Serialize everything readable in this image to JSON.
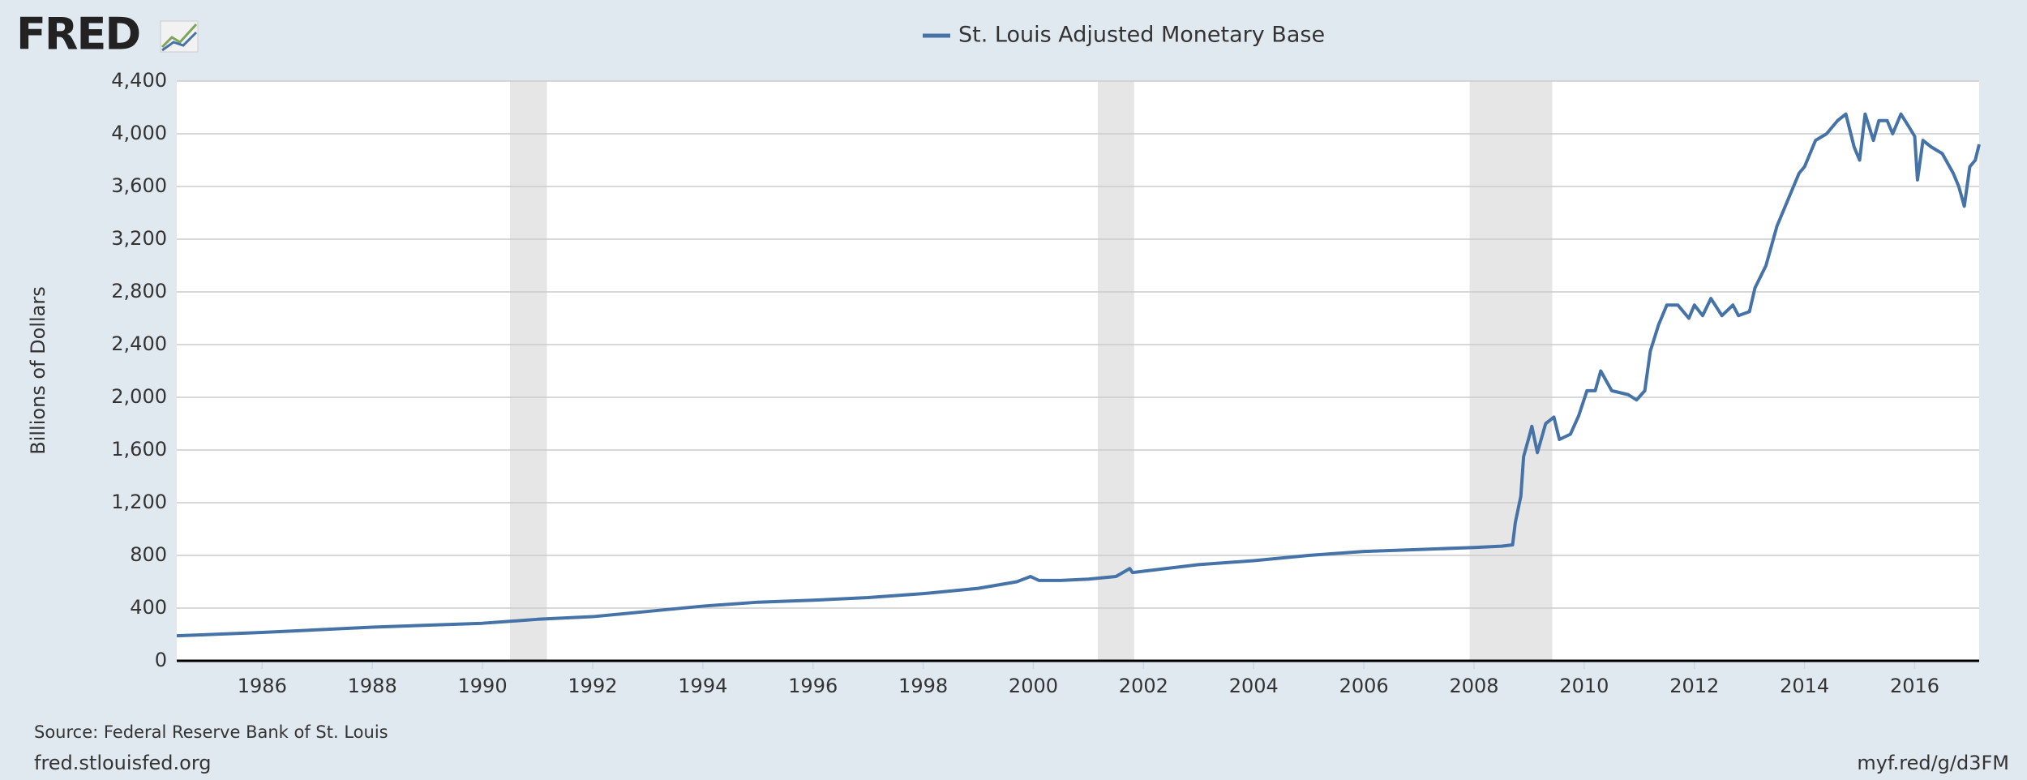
{
  "logo": "FRED",
  "chart_data": {
    "type": "line",
    "title": "St. Louis Adjusted Monetary Base",
    "y_label": "Billions of Dollars",
    "source": "Source: Federal Reserve Bank of St. Louis",
    "site": "fred.stlouisfed.org",
    "short_url": "myf.red/g/d3FM",
    "xlim": [
      1984.45,
      2017.17
    ],
    "xticks": [
      1986,
      1988,
      1990,
      1992,
      1994,
      1996,
      1998,
      2000,
      2002,
      2004,
      2006,
      2008,
      2010,
      2012,
      2014,
      2016
    ],
    "ylim": [
      0,
      4400
    ],
    "yticks": [
      0,
      400,
      800,
      {
        "value": 1200,
        "label": "1,200"
      },
      {
        "value": 1600,
        "label": "1,600"
      },
      {
        "value": 2000,
        "label": "2,000"
      },
      {
        "value": 2400,
        "label": "2,400"
      },
      {
        "value": 2800,
        "label": "2,800"
      },
      {
        "value": 3200,
        "label": "3,200"
      },
      {
        "value": 3600,
        "label": "3,600"
      },
      {
        "value": 4000,
        "label": "4,000"
      },
      {
        "value": 4400,
        "label": "4,400"
      }
    ],
    "grid": true,
    "recessions": [
      [
        1990.5,
        1991.17
      ],
      [
        2001.17,
        2001.83
      ],
      [
        2007.92,
        2009.42
      ]
    ],
    "recession_color": "#e6e6e6",
    "x": [
      1984.45,
      1986,
      1988,
      1990,
      1991,
      1992,
      1993,
      1994,
      1995,
      1996,
      1997,
      1998,
      1999,
      1999.7,
      1999.95,
      2000.1,
      2000.5,
      2001,
      2001.5,
      2001.75,
      2001.8,
      2002,
      2003,
      2004,
      2005,
      2006,
      2007,
      2008,
      2008.5,
      2008.7,
      2008.75,
      2008.85,
      2008.9,
      2009.0,
      2009.05,
      2009.15,
      2009.3,
      2009.45,
      2009.55,
      2009.75,
      2009.9,
      2010.05,
      2010.2,
      2010.3,
      2010.5,
      2010.8,
      2010.95,
      2011.1,
      2011.2,
      2011.35,
      2011.5,
      2011.7,
      2011.9,
      2012.0,
      2012.15,
      2012.3,
      2012.5,
      2012.7,
      2012.8,
      2013.0,
      2013.1,
      2013.3,
      2013.5,
      2013.7,
      2013.9,
      2014.0,
      2014.2,
      2014.4,
      2014.6,
      2014.75,
      2014.9,
      2015.0,
      2015.1,
      2015.25,
      2015.35,
      2015.5,
      2015.6,
      2015.75,
      2015.9,
      2016.0,
      2016.05,
      2016.15,
      2016.3,
      2016.5,
      2016.7,
      2016.8,
      2016.9,
      2017.0,
      2017.1,
      2017.17
    ],
    "series": [
      {
        "name": "St. Louis Adjusted Monetary Base",
        "color": "#4572a7",
        "values": [
          190,
          215,
          255,
          285,
          315,
          335,
          375,
          415,
          445,
          460,
          480,
          510,
          550,
          600,
          640,
          610,
          610,
          620,
          640,
          700,
          670,
          680,
          730,
          760,
          800,
          830,
          845,
          860,
          870,
          880,
          1050,
          1250,
          1550,
          1700,
          1780,
          1580,
          1800,
          1850,
          1680,
          1720,
          1860,
          2050,
          2050,
          2200,
          2050,
          2020,
          1980,
          2050,
          2350,
          2550,
          2700,
          2700,
          2600,
          2700,
          2620,
          2750,
          2620,
          2700,
          2620,
          2650,
          2830,
          3000,
          3300,
          3500,
          3700,
          3750,
          3950,
          4000,
          4100,
          4150,
          3900,
          3800,
          4150,
          3950,
          4100,
          4100,
          4000,
          4150,
          4050,
          3980,
          3650,
          3950,
          3900,
          3850,
          3700,
          3600,
          3450,
          3750,
          3800,
          3920
        ]
      }
    ]
  }
}
